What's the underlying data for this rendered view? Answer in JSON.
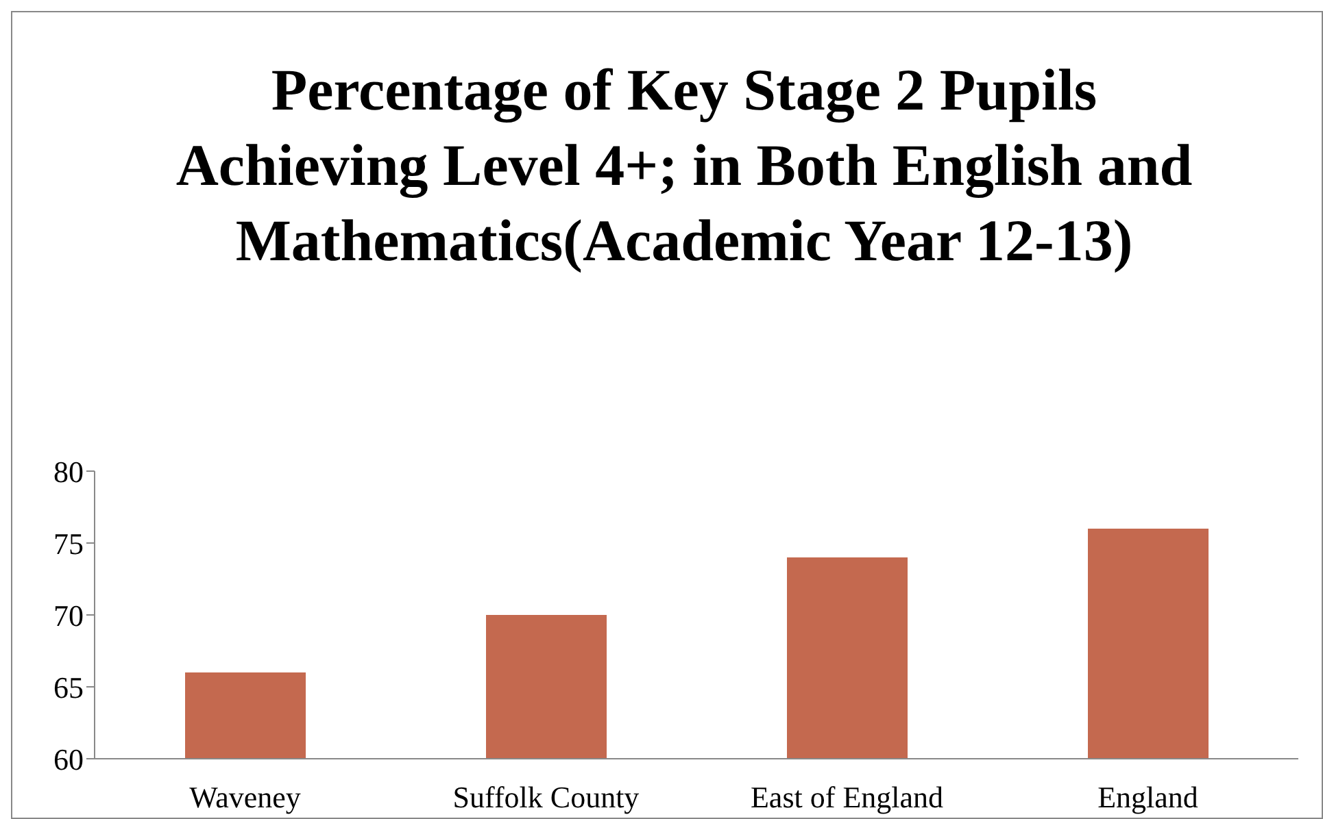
{
  "chart_data": {
    "type": "bar",
    "title": "Percentage of Key Stage 2 Pupils Achieving Level 4+; in Both English and Mathematics(Academic Year 12-13)",
    "categories": [
      "Waveney",
      "Suffolk County",
      "East of England",
      "England"
    ],
    "values": [
      66,
      70,
      74,
      76
    ],
    "color": "#c4694f",
    "ylim": [
      60,
      80
    ],
    "yticks": [
      60,
      65,
      70,
      75,
      80
    ]
  }
}
